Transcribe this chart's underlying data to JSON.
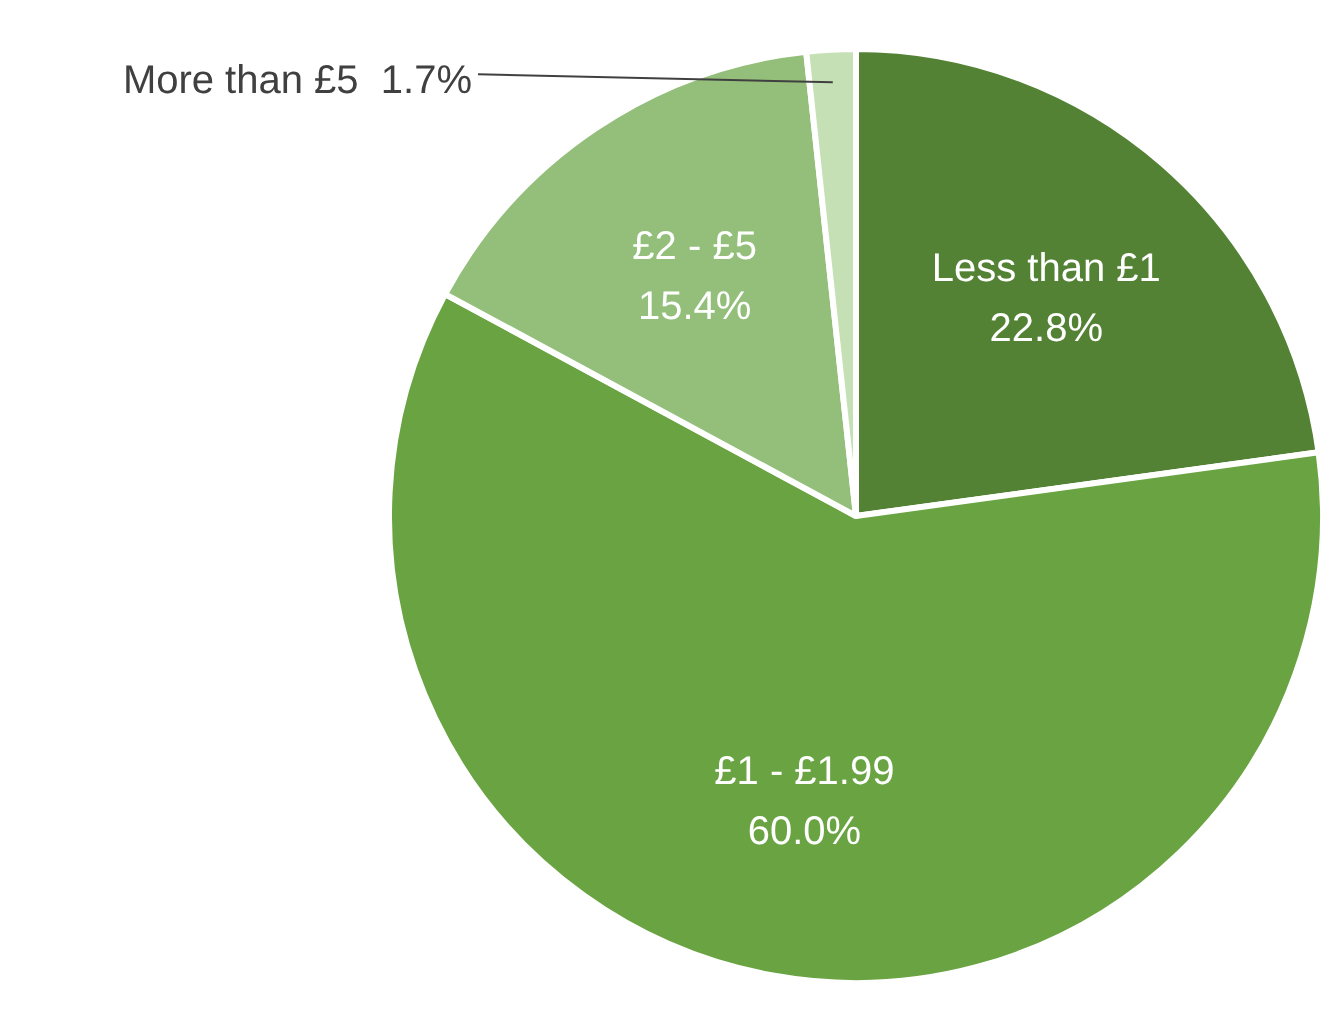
{
  "chart_data": {
    "type": "pie",
    "categories": [
      "Less than £1",
      "£1 - £1.99",
      "£2 - £5",
      "More than £5"
    ],
    "values": [
      22.8,
      60.0,
      15.4,
      1.7
    ],
    "colors": [
      "#548235",
      "#6aa442",
      "#93bf7a",
      "#c5e0b4"
    ],
    "value_labels": [
      "22.8%",
      "60.0%",
      "15.4%",
      "1.7%"
    ],
    "legend": false
  }
}
